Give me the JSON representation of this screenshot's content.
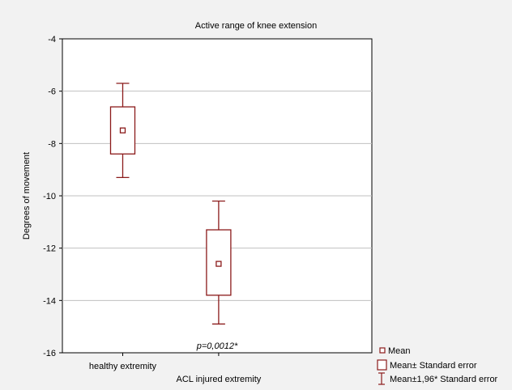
{
  "chart_data": {
    "type": "box",
    "title": "Active range of knee extension",
    "ylabel": "Degrees of movement",
    "xlabel": "",
    "ylim": [
      -16,
      -4
    ],
    "yticks": [
      -4,
      -6,
      -8,
      -10,
      -12,
      -14,
      -16
    ],
    "grid": true,
    "categories": [
      "healthy extremity",
      "ACL injured extremity"
    ],
    "groups": [
      {
        "category": "healthy extremity",
        "mean": -7.5,
        "se_low": -8.4,
        "se_high": -6.6,
        "ci_low": -9.3,
        "ci_high": -5.7
      },
      {
        "category": "ACL injured extremity",
        "mean": -12.6,
        "se_low": -13.8,
        "se_high": -11.3,
        "ci_low": -14.9,
        "ci_high": -10.2
      }
    ],
    "annotation": "p=0,0012*",
    "legend": {
      "placement": "bottom-right",
      "items": [
        {
          "symbol": "mean",
          "label": "Mean"
        },
        {
          "symbol": "box",
          "label": "Mean± Standard error"
        },
        {
          "symbol": "whisker",
          "label": "Mean±1,96* Standard error"
        }
      ]
    },
    "colors": {
      "series": "#8b1a1a",
      "background": "#ffffff",
      "grid": "#c0c0c0"
    }
  }
}
